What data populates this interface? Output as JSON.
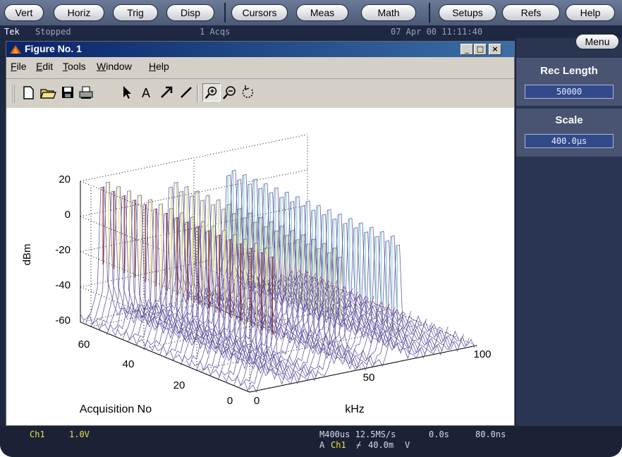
{
  "topbar": {
    "buttons": [
      "Vert",
      "Horiz",
      "Trig",
      "Disp",
      "Cursors",
      "Meas",
      "Math",
      "Setups",
      "Refs",
      "Help"
    ]
  },
  "status": {
    "brand": "Tek",
    "state": "Stopped",
    "acqs": "1 Acqs",
    "datetime": "07 Apr 00 11:11:40"
  },
  "rightpanel": {
    "menu_label": "Menu",
    "rec_length_title": "Rec Length",
    "rec_length_value": "50000",
    "scale_title": "Scale",
    "scale_value": "400.0µs"
  },
  "bottom": {
    "channel": "Ch1",
    "volts": "1.0V",
    "timebase": "M400us 12.5MS/s",
    "position": "0.0s",
    "resolution": "80.0ns",
    "trigger_prefix": "A",
    "trigger_channel": "Ch1",
    "trigger_slope": "⌿",
    "trigger_level": "40.0m",
    "trigger_unit": "V"
  },
  "figure": {
    "title": "Figure No. 1",
    "menu": [
      {
        "label": "File",
        "key": "F"
      },
      {
        "label": "Edit",
        "key": "E"
      },
      {
        "label": "Tools",
        "key": "T"
      },
      {
        "label": "Window",
        "key": "W"
      },
      {
        "label": "Help",
        "key": "H"
      }
    ],
    "toolbar_icons": [
      "new-file-icon",
      "open-folder-icon",
      "save-icon",
      "print-icon",
      "select-arrow-icon",
      "text-tool-icon",
      "arrow-tool-icon",
      "line-tool-icon",
      "zoom-in-icon",
      "zoom-out-icon",
      "rotate-icon"
    ]
  },
  "plot": {
    "ylabel": "dBm",
    "xlabel": "kHz",
    "depth_label": "Acquisition No",
    "z_ticks": [
      "20",
      "0",
      "-20",
      "-40",
      "-60"
    ],
    "depth_ticks": [
      "60",
      "40",
      "20",
      "0"
    ],
    "x_ticks": [
      "0",
      "50",
      "100"
    ],
    "colors": {
      "ridge_top": "#f0e86a",
      "ridge_mid": "#c8d87a",
      "low": "#5a4a9a",
      "cyan": "#7fd4e0",
      "dark": "#7a1a0a"
    }
  }
}
